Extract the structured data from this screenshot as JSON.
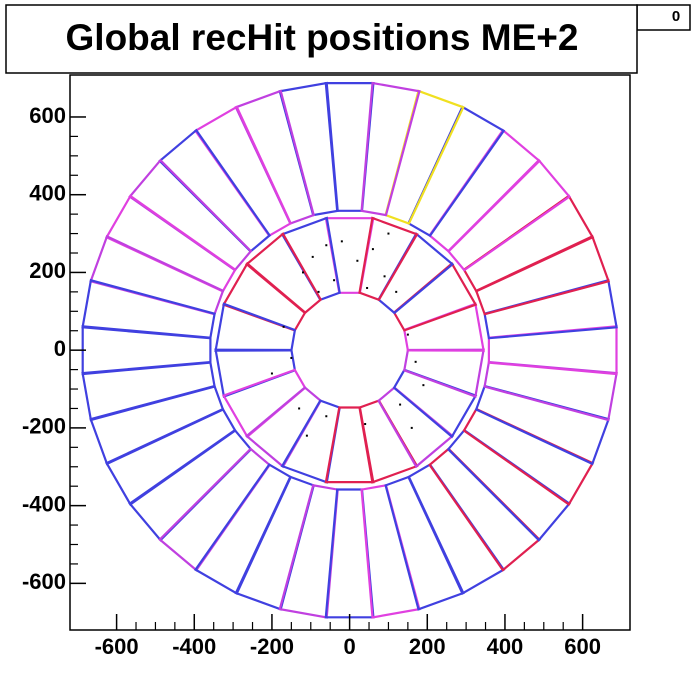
{
  "chart_data": {
    "type": "scatter",
    "title": "Global recHit positions ME+2",
    "entries": 0,
    "xlim": [
      -720,
      722
    ],
    "ylim": [
      -720,
      708
    ],
    "xticks": [
      -600,
      -400,
      -200,
      0,
      200,
      400,
      600
    ],
    "yticks": [
      -600,
      -400,
      -200,
      0,
      200,
      400,
      600
    ],
    "rings": [
      {
        "count": 18,
        "start_angle": 90,
        "inner_radius": 150,
        "outer_radius": 345,
        "colors": [
          "#e040e0",
          "#4040e0",
          "#e02050",
          "#e02050",
          "#4040e0",
          "#4040e0",
          "#e040e0",
          "#c040e0",
          "#4040e0",
          "#e02050",
          "#e02050",
          "#c040e0",
          "#4040e0",
          "#c040e0",
          "#e040e0",
          "#e02050",
          "#4040e0",
          "#e02050"
        ]
      },
      {
        "count": 36,
        "start_angle": 90,
        "inner_radius": 360,
        "outer_radius": 690,
        "colors": [
          "#4040e0",
          "#4040e0",
          "#c040e0",
          "#e040e0",
          "#4040e0",
          "#c040e0",
          "#e040e0",
          "#c040e0",
          "#4040e0",
          "#4040e0",
          "#4040e0",
          "#4040e0",
          "#4040e0",
          "#4040e0",
          "#c040e0",
          "#4040e0",
          "#4040e0",
          "#c040e0",
          "#4040e0",
          "#e040e0",
          "#4040e0",
          "#4040e0",
          "#e02050",
          "#4040e0",
          "#e02050",
          "#4040e0",
          "#c040e0",
          "#e040e0",
          "#4040e0",
          "#e02050",
          "#e02050",
          "#e040e0",
          "#e040e0",
          "#4040e0",
          "#f0e020",
          "#c040e0"
        ]
      }
    ],
    "hits": {
      "x": [
        -120,
        -95,
        -80,
        -60,
        -40,
        20,
        45,
        60,
        90,
        120,
        150,
        170,
        -150,
        -170,
        -200,
        -130,
        -110,
        130,
        160,
        190,
        -60,
        40,
        -20,
        100
      ],
      "y": [
        200,
        240,
        150,
        270,
        180,
        230,
        160,
        260,
        190,
        150,
        40,
        -30,
        -20,
        60,
        -60,
        -150,
        -220,
        -140,
        -200,
        -90,
        -170,
        -190,
        280,
        300
      ]
    },
    "hit_color": "#000000"
  }
}
